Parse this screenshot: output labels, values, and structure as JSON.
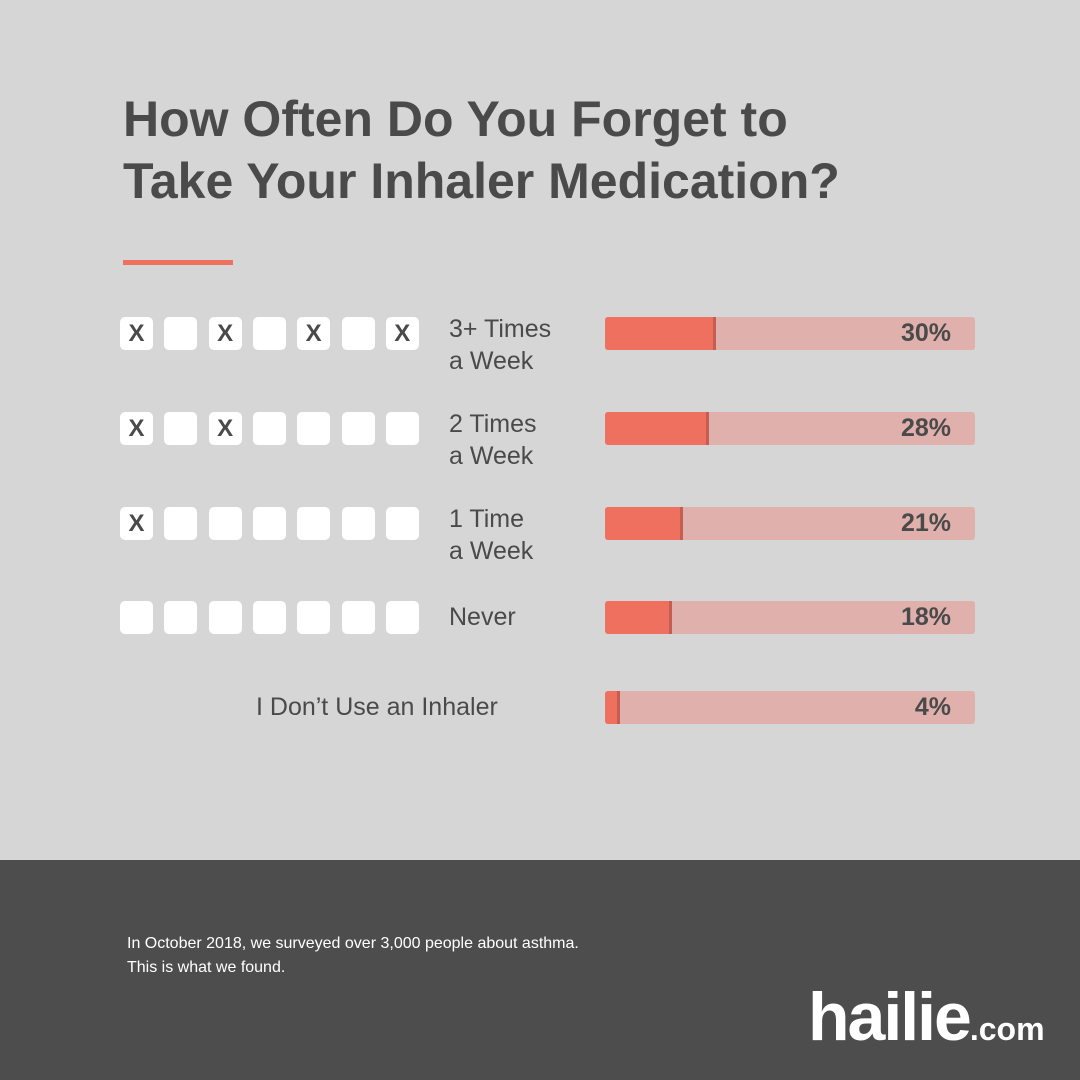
{
  "title": {
    "line1": "How Often Do You Forget to",
    "line2": "Take Your Inhaler Medication?"
  },
  "colors": {
    "background": "#d6d6d6",
    "accent": "#f07060",
    "bar_track": "#e0b0ac",
    "text": "#4a4a4a",
    "footer": "#4d4d4d"
  },
  "chart_data": {
    "type": "bar",
    "orientation": "horizontal",
    "title": "How Often Do You Forget to Take Your Inhaler Medication?",
    "categories": [
      "3+ Times a Week",
      "2 Times a Week",
      "1 Time a Week",
      "Never",
      "I Don’t Use an Inhaler"
    ],
    "values": [
      30,
      28,
      21,
      18,
      4
    ],
    "unit": "%",
    "xlim": [
      0,
      100
    ],
    "grid": false,
    "legend": "none"
  },
  "rows": [
    {
      "label_lines": [
        "3+ Times",
        "a Week"
      ],
      "value": 30,
      "value_label": "30%",
      "days": [
        "X",
        "",
        "X",
        "",
        "X",
        "",
        "X"
      ]
    },
    {
      "label_lines": [
        "2 Times",
        "a Week"
      ],
      "value": 28,
      "value_label": "28%",
      "days": [
        "X",
        "",
        "X",
        "",
        "",
        "",
        ""
      ]
    },
    {
      "label_lines": [
        "1 Time",
        "a Week"
      ],
      "value": 21,
      "value_label": "21%",
      "days": [
        "X",
        "",
        "",
        "",
        "",
        "",
        ""
      ]
    },
    {
      "label_lines": [
        "Never"
      ],
      "value": 18,
      "value_label": "18%",
      "days": [
        "",
        "",
        "",
        "",
        "",
        "",
        ""
      ]
    },
    {
      "label_lines": [
        "I Don’t Use an Inhaler"
      ],
      "value": 4,
      "value_label": "4%",
      "days": []
    }
  ],
  "footer": {
    "note_line1": "In October 2018, we surveyed over 3,000 people about asthma.",
    "note_line2": "This is what we found.",
    "logo_main": "hailie",
    "logo_suffix": ".com"
  }
}
